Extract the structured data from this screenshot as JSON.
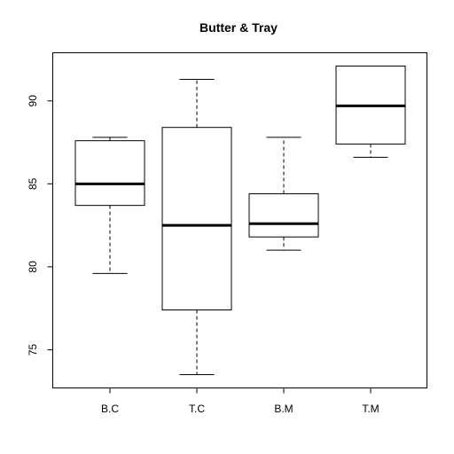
{
  "chart_data": {
    "type": "boxplot",
    "title": "Butter & Tray",
    "xlabel": "",
    "ylabel": "",
    "categories": [
      "B.C",
      "T.C",
      "B.M",
      "T.M"
    ],
    "ylim": [
      72.7,
      92.9
    ],
    "yticks": [
      "75",
      "80",
      "85",
      "90"
    ],
    "ytick_values": [
      75,
      80,
      85,
      90
    ],
    "boxes": [
      {
        "name": "B.C",
        "whisker_low": 79.6,
        "q1": 83.7,
        "median": 85.0,
        "q3": 87.6,
        "whisker_high": 87.8
      },
      {
        "name": "T.C",
        "whisker_low": 73.5,
        "q1": 77.4,
        "median": 82.5,
        "q3": 88.4,
        "whisker_high": 91.3
      },
      {
        "name": "B.M",
        "whisker_low": 81.0,
        "q1": 81.8,
        "median": 82.6,
        "q3": 84.4,
        "whisker_high": 87.8
      },
      {
        "name": "T.M",
        "whisker_low": 86.6,
        "q1": 87.4,
        "median": 89.7,
        "q3": 92.1,
        "whisker_high": 92.1
      }
    ],
    "grid": false,
    "legend": "none",
    "colors": {
      "box_fill": "#ffffff",
      "stroke": "#000000",
      "background": "#ffffff"
    }
  }
}
